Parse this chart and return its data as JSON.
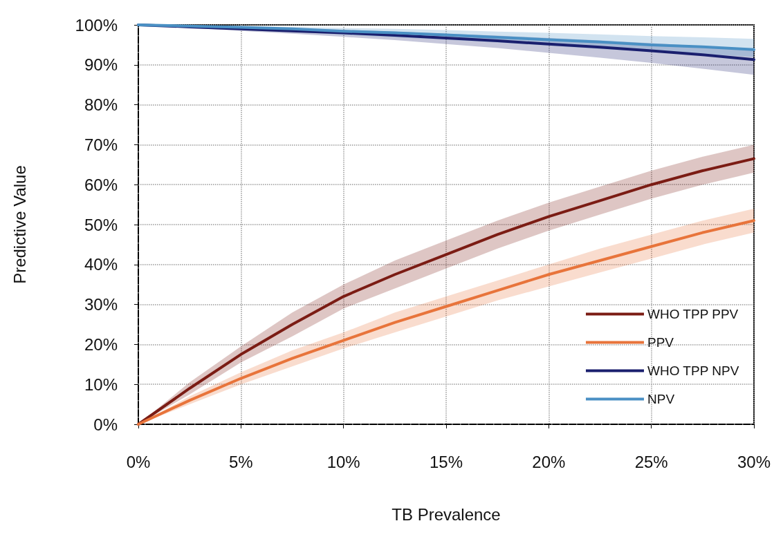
{
  "chart_data": {
    "type": "line",
    "xlabel": "TB Prevalence",
    "ylabel": "Predictive Value",
    "x": [
      0,
      2.5,
      5,
      7.5,
      10,
      12.5,
      15,
      17.5,
      20,
      22.5,
      25,
      27.5,
      30
    ],
    "series": [
      {
        "name": "WHO TPP PPV",
        "color": "#7b1c14",
        "values": [
          0,
          9,
          17.5,
          25,
          32,
          37.5,
          42.5,
          47.5,
          52,
          56,
          60,
          63.5,
          66.5
        ],
        "lower": [
          0,
          7.5,
          15.5,
          22,
          29,
          34,
          39,
          44,
          48.5,
          52.5,
          56.5,
          60,
          63
        ],
        "upper": [
          0,
          10.5,
          19.5,
          28,
          35,
          41,
          46,
          51,
          55.5,
          59.5,
          63.5,
          67,
          70
        ]
      },
      {
        "name": "PPV",
        "color": "#e8743b",
        "values": [
          0,
          6,
          11.5,
          16.5,
          21,
          25.5,
          29.5,
          33.5,
          37.5,
          41,
          44.5,
          48,
          51
        ],
        "lower": [
          0,
          5,
          10,
          14.5,
          19,
          23,
          27,
          31,
          34.5,
          38,
          41.5,
          45,
          48
        ],
        "upper": [
          0,
          7,
          13,
          18.5,
          23,
          28,
          32,
          36,
          40,
          44,
          47.5,
          51,
          54
        ]
      },
      {
        "name": "WHO TPP NPV",
        "color": "#1a1f6e",
        "values": [
          100,
          99.5,
          99,
          98.5,
          98,
          97.4,
          96.7,
          96,
          95.2,
          94.4,
          93.5,
          92.5,
          91.3
        ],
        "lower": [
          100,
          99.3,
          98.5,
          97.8,
          97,
          96.2,
          95.2,
          94.2,
          93,
          91.8,
          90.5,
          89,
          87.5
        ],
        "upper": [
          100,
          99.7,
          99.4,
          99.1,
          98.8,
          98.3,
          97.8,
          97.3,
          96.7,
          96.1,
          95.4,
          94.7,
          94
        ]
      },
      {
        "name": "NPV",
        "color": "#4a90c4",
        "values": [
          100,
          99.7,
          99.4,
          99,
          98.4,
          98,
          97.5,
          96.9,
          96.3,
          95.7,
          95,
          94.5,
          93.8
        ],
        "lower": [
          100,
          99.5,
          99,
          98.3,
          97.5,
          96.9,
          96.3,
          95.6,
          94.8,
          94,
          93.3,
          92.7,
          92
        ],
        "upper": [
          100,
          99.9,
          99.7,
          99.5,
          99.2,
          99,
          98.7,
          98.3,
          98,
          97.6,
          97.2,
          96.9,
          96.5
        ]
      }
    ],
    "xlim": [
      0,
      30
    ],
    "xticks": [
      {
        "value": 0,
        "label": "0%"
      },
      {
        "value": 5,
        "label": "5%"
      },
      {
        "value": 10,
        "label": "10%"
      },
      {
        "value": 15,
        "label": "15%"
      },
      {
        "value": 20,
        "label": "20%"
      },
      {
        "value": 25,
        "label": "25%"
      },
      {
        "value": 30,
        "label": "30%"
      }
    ],
    "ylim": [
      0,
      100
    ],
    "yticks": [
      {
        "value": 0,
        "label": "0%"
      },
      {
        "value": 10,
        "label": "10%"
      },
      {
        "value": 20,
        "label": "20%"
      },
      {
        "value": 30,
        "label": "30%"
      },
      {
        "value": 40,
        "label": "40%"
      },
      {
        "value": 50,
        "label": "50%"
      },
      {
        "value": 60,
        "label": "60%"
      },
      {
        "value": 70,
        "label": "70%"
      },
      {
        "value": 80,
        "label": "80%"
      },
      {
        "value": 90,
        "label": "90%"
      },
      {
        "value": 100,
        "label": "100%"
      }
    ],
    "grid": true,
    "legend": "bottom right",
    "line_style": "solid",
    "marker": "none"
  }
}
